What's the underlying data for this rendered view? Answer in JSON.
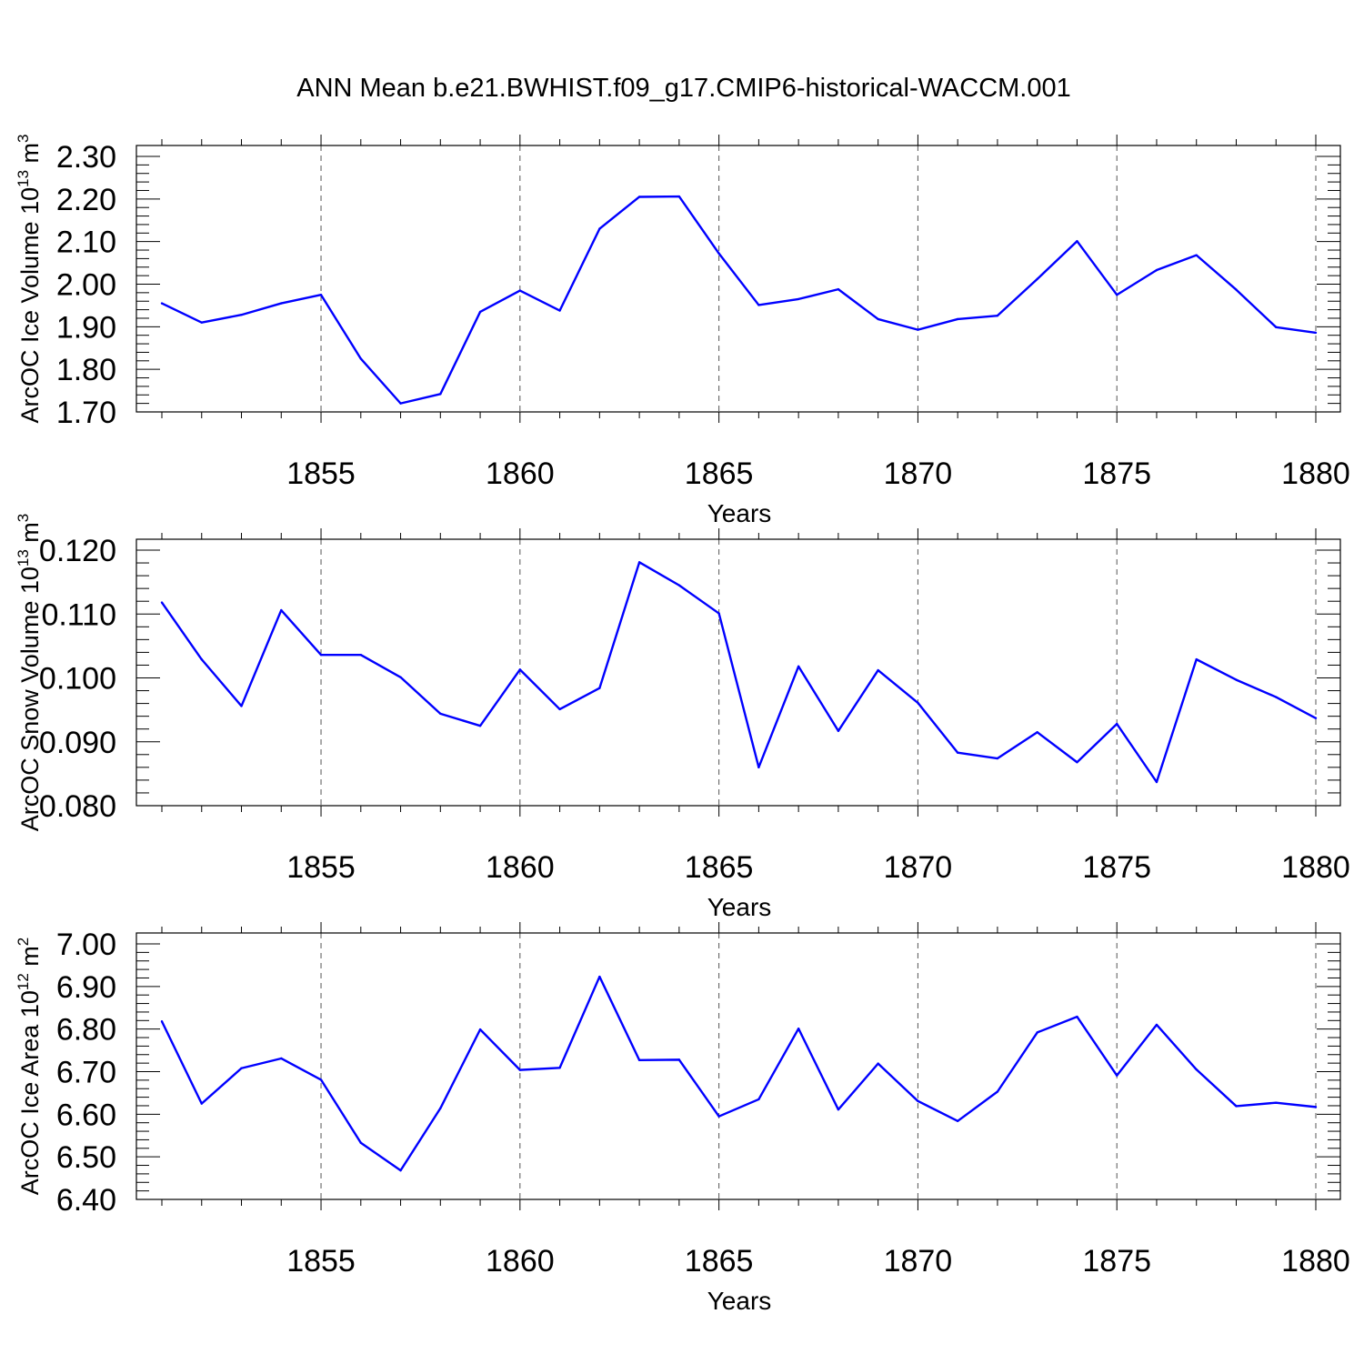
{
  "figure": {
    "title": "ANN Mean b.e21.BWHIST.f09_g17.CMIP6-historical-WACCM.001"
  },
  "colors": {
    "line": "#0000ff",
    "axis": "#000000",
    "grid": "#555555",
    "background": "#ffffff"
  },
  "chart_data": [
    {
      "type": "line",
      "ylabel": "ArcOC Ice Volume 10",
      "ylabel_sup": "13",
      "ylabel_unit": "m",
      "ylabel_unit_sup": "3",
      "xlabel": "Years",
      "xlim": [
        1851,
        1880
      ],
      "ylim": [
        1.7,
        2.3
      ],
      "xticks": [
        1855,
        1860,
        1865,
        1870,
        1875,
        1880
      ],
      "xtick_labels": [
        "1855",
        "1860",
        "1865",
        "1870",
        "1875",
        "1880"
      ],
      "yticks": [
        1.7,
        1.8,
        1.9,
        2.0,
        2.1,
        2.2,
        2.3
      ],
      "ytick_labels": [
        "1.70",
        "1.80",
        "1.90",
        "2.00",
        "2.10",
        "2.20",
        "2.30"
      ],
      "grid": "vertical dashed at major x ticks",
      "x": [
        1851,
        1852,
        1853,
        1854,
        1855,
        1856,
        1857,
        1858,
        1859,
        1860,
        1861,
        1862,
        1863,
        1864,
        1865,
        1866,
        1867,
        1868,
        1869,
        1870,
        1871,
        1872,
        1873,
        1874,
        1875,
        1876,
        1877,
        1878,
        1879,
        1880
      ],
      "series": [
        {
          "values": [
            1.955,
            1.91,
            1.928,
            1.955,
            1.975,
            1.825,
            1.72,
            1.742,
            1.935,
            1.985,
            1.938,
            2.13,
            2.205,
            2.206,
            2.072,
            1.951,
            1.965,
            1.988,
            1.918,
            1.893,
            1.918,
            1.926,
            2.012,
            2.101,
            1.975,
            2.033,
            2.068,
            1.987,
            1.899,
            1.886
          ]
        }
      ]
    },
    {
      "type": "line",
      "ylabel": "ArcOC Snow Volume 10",
      "ylabel_sup": "13",
      "ylabel_unit": "m",
      "ylabel_unit_sup": "3",
      "xlabel": "Years",
      "xlim": [
        1851,
        1880
      ],
      "ylim": [
        0.08,
        0.12
      ],
      "xticks": [
        1855,
        1860,
        1865,
        1870,
        1875,
        1880
      ],
      "xtick_labels": [
        "1855",
        "1860",
        "1865",
        "1870",
        "1875",
        "1880"
      ],
      "yticks": [
        0.08,
        0.09,
        0.1,
        0.11,
        0.12
      ],
      "ytick_labels": [
        "0.080",
        "0.090",
        "0.100",
        "0.110",
        "0.120"
      ],
      "grid": "vertical dashed at major x ticks",
      "x": [
        1851,
        1852,
        1853,
        1854,
        1855,
        1856,
        1857,
        1858,
        1859,
        1860,
        1861,
        1862,
        1863,
        1864,
        1865,
        1866,
        1867,
        1868,
        1869,
        1870,
        1871,
        1872,
        1873,
        1874,
        1875,
        1876,
        1877,
        1878,
        1879,
        1880
      ],
      "series": [
        {
          "values": [
            0.1118,
            0.1029,
            0.0956,
            0.1106,
            0.1036,
            0.1036,
            0.1001,
            0.0944,
            0.0925,
            0.1013,
            0.0951,
            0.0984,
            0.1181,
            0.1145,
            0.1101,
            0.086,
            0.1018,
            0.0917,
            0.1012,
            0.0961,
            0.0883,
            0.0874,
            0.0915,
            0.0868,
            0.0928,
            0.0837,
            0.1029,
            0.0997,
            0.097,
            0.0937
          ]
        }
      ]
    },
    {
      "type": "line",
      "ylabel": "ArcOC Ice Area 10",
      "ylabel_sup": "12",
      "ylabel_unit": "m",
      "ylabel_unit_sup": "2",
      "xlabel": "Years",
      "xlim": [
        1851,
        1880
      ],
      "ylim": [
        6.4,
        7.0
      ],
      "xticks": [
        1855,
        1860,
        1865,
        1870,
        1875,
        1880
      ],
      "xtick_labels": [
        "1855",
        "1860",
        "1865",
        "1870",
        "1875",
        "1880"
      ],
      "yticks": [
        6.4,
        6.5,
        6.6,
        6.7,
        6.8,
        6.9,
        7.0
      ],
      "ytick_labels": [
        "6.40",
        "6.50",
        "6.60",
        "6.70",
        "6.80",
        "6.90",
        "7.00"
      ],
      "grid": "vertical dashed at major x ticks",
      "x": [
        1851,
        1852,
        1853,
        1854,
        1855,
        1856,
        1857,
        1858,
        1859,
        1860,
        1861,
        1862,
        1863,
        1864,
        1865,
        1866,
        1867,
        1868,
        1869,
        1870,
        1871,
        1872,
        1873,
        1874,
        1875,
        1876,
        1877,
        1878,
        1879,
        1880
      ],
      "series": [
        {
          "values": [
            6.818,
            6.625,
            6.708,
            6.731,
            6.681,
            6.533,
            6.468,
            6.614,
            6.799,
            6.704,
            6.709,
            6.923,
            6.727,
            6.728,
            6.595,
            6.635,
            6.801,
            6.611,
            6.719,
            6.631,
            6.584,
            6.653,
            6.792,
            6.829,
            6.691,
            6.81,
            6.705,
            6.619,
            6.627,
            6.617
          ]
        }
      ]
    }
  ]
}
